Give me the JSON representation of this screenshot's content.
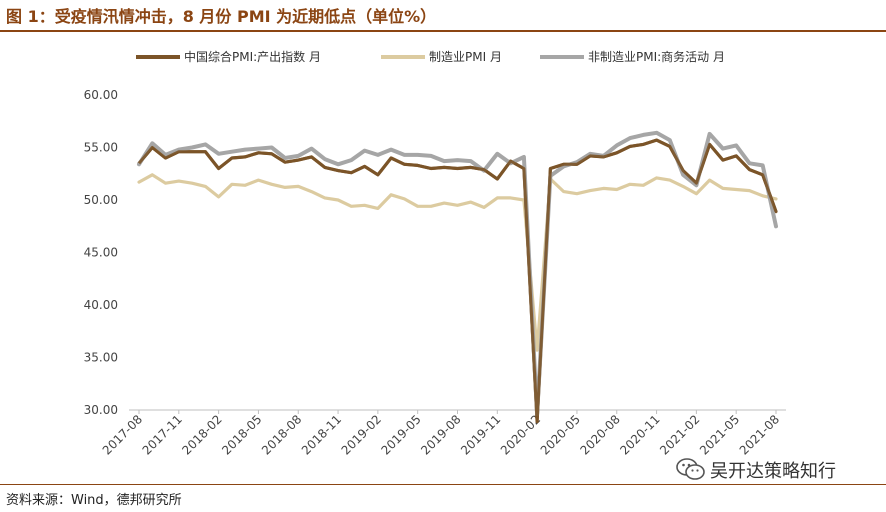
{
  "header": {
    "title": "图 1：受疫情汛情冲击，8 月份 PMI 为近期低点（单位%）"
  },
  "footer": {
    "source": "资料来源：Wind，德邦研究所",
    "watermark": "吴开达策略知行",
    "watermark_icon": "wechat-icon"
  },
  "colors": {
    "accent": "#8B4513",
    "composite": "#7B5428",
    "manufacturing": "#DCCBA0",
    "non_manufacturing": "#A6A6A6"
  },
  "chart_data": {
    "type": "line",
    "title": "",
    "xlabel": "",
    "ylabel": "",
    "ylim": [
      30,
      60
    ],
    "yticks": [
      "60.00",
      "55.00",
      "50.00",
      "45.00",
      "40.00",
      "35.00",
      "30.00"
    ],
    "grid": false,
    "legend_position": "top",
    "x": [
      "2017-08",
      "2017-09",
      "2017-10",
      "2017-11",
      "2017-12",
      "2018-01",
      "2018-02",
      "2018-03",
      "2018-04",
      "2018-05",
      "2018-06",
      "2018-07",
      "2018-08",
      "2018-09",
      "2018-10",
      "2018-11",
      "2018-12",
      "2019-01",
      "2019-02",
      "2019-03",
      "2019-04",
      "2019-05",
      "2019-06",
      "2019-07",
      "2019-08",
      "2019-09",
      "2019-10",
      "2019-11",
      "2019-12",
      "2020-01",
      "2020-02",
      "2020-03",
      "2020-04",
      "2020-05",
      "2020-06",
      "2020-07",
      "2020-08",
      "2020-09",
      "2020-10",
      "2020-11",
      "2020-12",
      "2021-01",
      "2021-02",
      "2021-03",
      "2021-04",
      "2021-05",
      "2021-06",
      "2021-07",
      "2021-08"
    ],
    "xtick_labels": [
      "2017-08",
      "2017-11",
      "2018-02",
      "2018-05",
      "2018-08",
      "2018-11",
      "2019-02",
      "2019-05",
      "2019-08",
      "2019-11",
      "2020-02",
      "2020-05",
      "2020-08",
      "2020-11",
      "2021-02",
      "2021-05",
      "2021-08"
    ],
    "series": [
      {
        "name": "中国综合PMI:产出指数 月",
        "key": "composite",
        "values": [
          53.5,
          55.0,
          54.0,
          54.6,
          54.6,
          54.6,
          53.0,
          54.0,
          54.1,
          54.5,
          54.4,
          53.6,
          53.8,
          54.1,
          53.1,
          52.8,
          52.6,
          53.2,
          52.4,
          54.0,
          53.4,
          53.3,
          53.0,
          53.1,
          53.0,
          53.1,
          52.9,
          52.0,
          53.7,
          53.0,
          28.9,
          53.0,
          53.4,
          53.4,
          54.2,
          54.1,
          54.5,
          55.1,
          55.3,
          55.7,
          55.1,
          52.8,
          51.6,
          55.3,
          53.8,
          54.2,
          52.9,
          52.4,
          48.9
        ]
      },
      {
        "name": "制造业PMI 月",
        "key": "manufacturing",
        "values": [
          51.7,
          52.4,
          51.6,
          51.8,
          51.6,
          51.3,
          50.3,
          51.5,
          51.4,
          51.9,
          51.5,
          51.2,
          51.3,
          50.8,
          50.2,
          50.0,
          49.4,
          49.5,
          49.2,
          50.5,
          50.1,
          49.4,
          49.4,
          49.7,
          49.5,
          49.8,
          49.3,
          50.2,
          50.2,
          50.0,
          35.7,
          52.0,
          50.8,
          50.6,
          50.9,
          51.1,
          51.0,
          51.5,
          51.4,
          52.1,
          51.9,
          51.3,
          50.6,
          51.9,
          51.1,
          51.0,
          50.9,
          50.4,
          50.1
        ]
      },
      {
        "name": "非制造业PMI:商务活动 月",
        "key": "non_manufacturing",
        "values": [
          53.4,
          55.4,
          54.3,
          54.8,
          55.0,
          55.3,
          54.4,
          54.6,
          54.8,
          54.9,
          55.0,
          54.0,
          54.2,
          54.9,
          53.9,
          53.4,
          53.8,
          54.7,
          54.3,
          54.8,
          54.3,
          54.3,
          54.2,
          53.7,
          53.8,
          53.7,
          52.8,
          54.4,
          53.5,
          54.1,
          29.6,
          52.3,
          53.2,
          53.6,
          54.4,
          54.2,
          55.2,
          55.9,
          56.2,
          56.4,
          55.7,
          52.4,
          51.4,
          56.3,
          54.9,
          55.2,
          53.5,
          53.3,
          47.5
        ]
      }
    ]
  }
}
